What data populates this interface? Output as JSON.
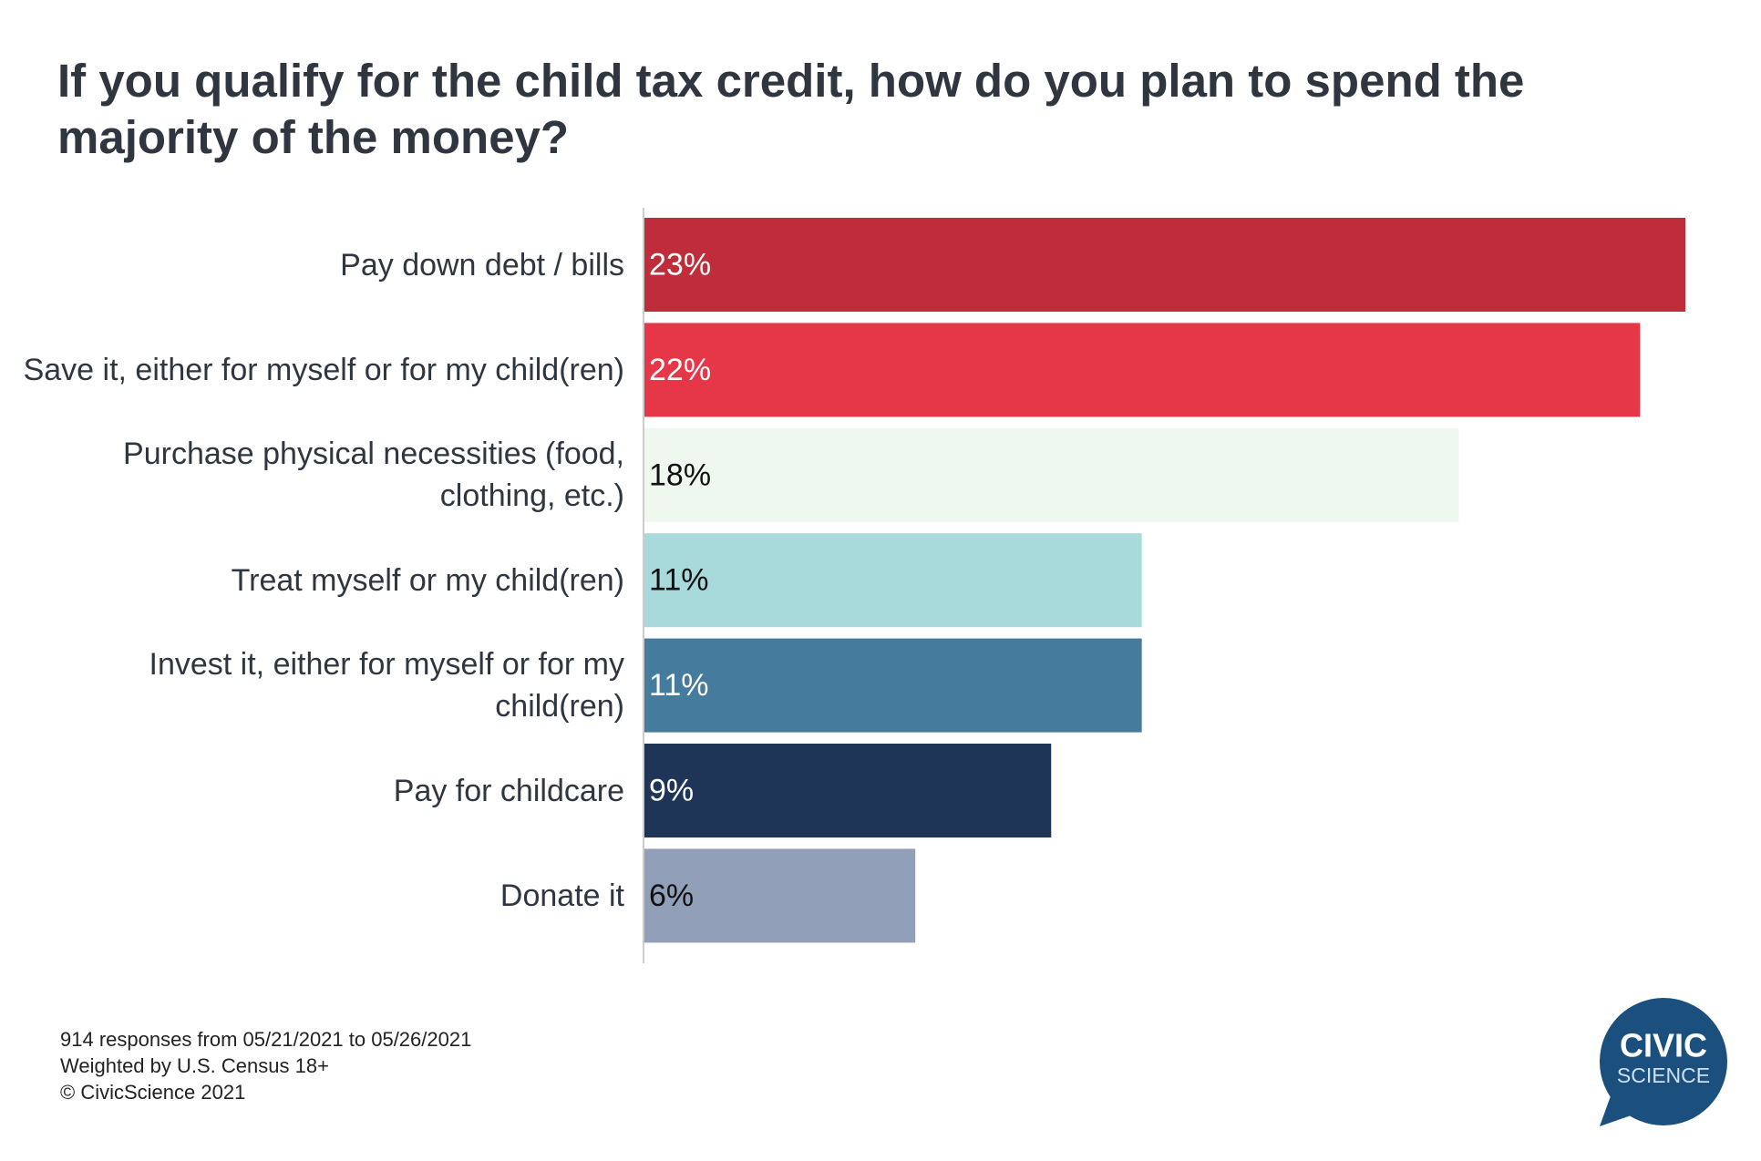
{
  "chart_data": {
    "type": "hbar",
    "title": "If you qualify for the child tax credit, how do you plan to spend the majority of the money?",
    "categories": [
      "Pay down debt / bills",
      "Save it, either for myself or for my child(ren)",
      "Purchase physical necessities (food, clothing, etc.)",
      "Treat myself or my child(ren)",
      "Invest it, either for myself or for my child(ren)",
      "Pay for childcare",
      "Donate it"
    ],
    "values": [
      23,
      22,
      18,
      11,
      11,
      9,
      6
    ],
    "value_labels": [
      "23%",
      "22%",
      "18%",
      "11%",
      "11%",
      "9%",
      "6%"
    ],
    "colors": [
      "#bf2d3a",
      "#e63748",
      "#eff8ee",
      "#a8dadb",
      "#457b9d",
      "#1e3557",
      "#929fb8"
    ],
    "xlim": [
      0,
      23
    ],
    "notes": [
      "914 responses from 05/21/2021 to 05/26/2021",
      "Weighted by U.S. Census 18+",
      "© CivicScience 2021"
    ]
  },
  "logo": {
    "line1": "CIVIC",
    "line2": "SCIENCE"
  }
}
